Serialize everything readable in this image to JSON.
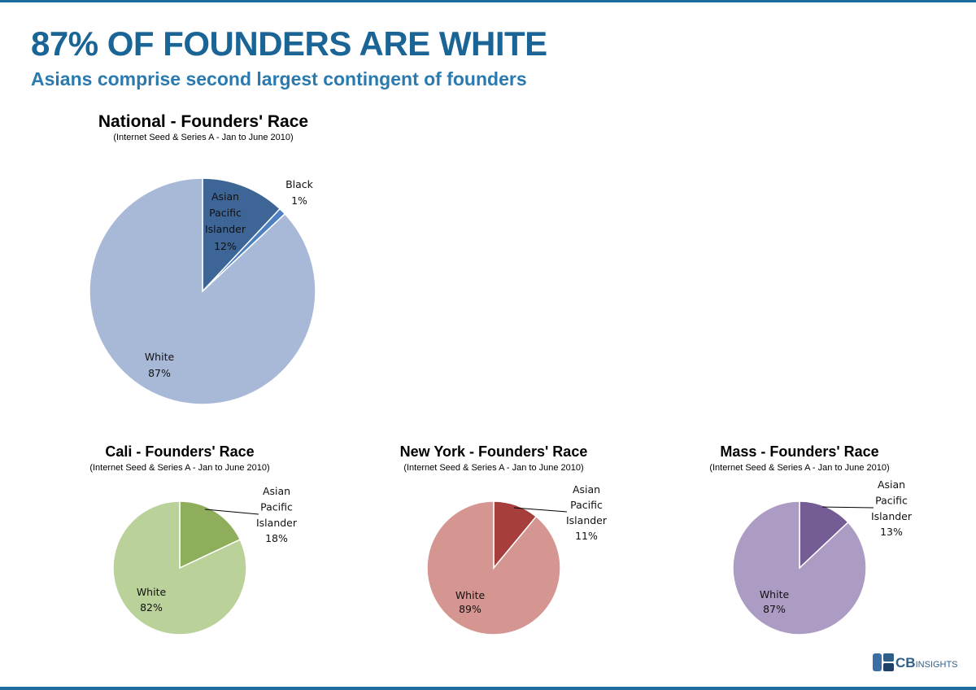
{
  "page": {
    "title": "87% OF FOUNDERS ARE WHITE",
    "subtitle": "Asians comprise second largest contingent of founders"
  },
  "logo": {
    "brand": "CB",
    "suffix": "INSIGHTS"
  },
  "colors": {
    "frame": "#1f6c9e",
    "title": "#1a6496"
  },
  "chart_data": [
    {
      "type": "pie",
      "title": "National - Founders' Race",
      "subtitle": "(Internet Seed & Series A - Jan to June 2010)",
      "slices": [
        {
          "label": "Asian Pacific Islander",
          "value": 12,
          "display": "12%",
          "color": "#3d6596"
        },
        {
          "label": "Black",
          "value": 1,
          "display": "1%",
          "color": "#4e7fc1"
        },
        {
          "label": "White",
          "value": 87,
          "display": "87%",
          "color": "#a8b9d8"
        }
      ]
    },
    {
      "type": "pie",
      "title": "Cali - Founders'  Race",
      "subtitle": "(Internet Seed & Series A - Jan to June 2010)",
      "slices": [
        {
          "label": "Asian Pacific Islander",
          "value": 18,
          "display": "18%",
          "color": "#8fae5c"
        },
        {
          "label": "White",
          "value": 82,
          "display": "82%",
          "color": "#bad19a"
        }
      ]
    },
    {
      "type": "pie",
      "title": "New York - Founders'  Race",
      "subtitle": "(Internet Seed & Series A - Jan to June 2010)",
      "slices": [
        {
          "label": "Asian Pacific Islander",
          "value": 11,
          "display": "11%",
          "color": "#a63f3c"
        },
        {
          "label": "White",
          "value": 89,
          "display": "89%",
          "color": "#d59590"
        }
      ]
    },
    {
      "type": "pie",
      "title": "Mass - Founders'  Race",
      "subtitle": "(Internet Seed & Series A - Jan to June 2010)",
      "slices": [
        {
          "label": "Asian Pacific Islander",
          "value": 13,
          "display": "13%",
          "color": "#735d94"
        },
        {
          "label": "White",
          "value": 87,
          "display": "87%",
          "color": "#ac9cc3"
        }
      ]
    }
  ]
}
